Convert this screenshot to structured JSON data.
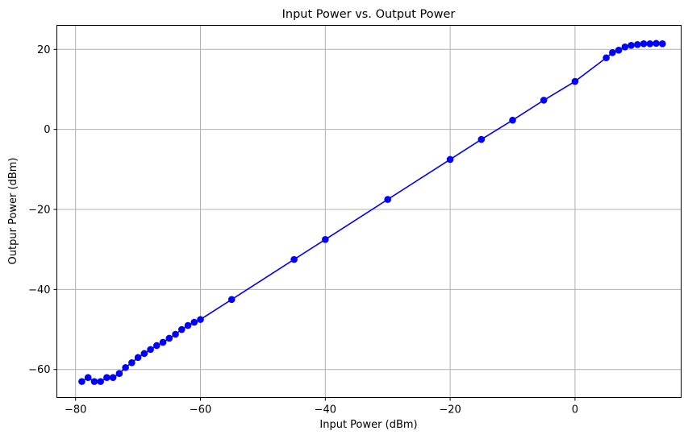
{
  "chart_data": {
    "type": "line",
    "title": "Input Power vs. Output Power",
    "xlabel": "Input Power (dBm)",
    "ylabel": "Outpur Power (dBm)",
    "xlim": [
      -83,
      17
    ],
    "ylim": [
      -67,
      26
    ],
    "xticks": [
      -80,
      -60,
      -40,
      -20,
      0
    ],
    "yticks": [
      -60,
      -40,
      -20,
      0,
      20
    ],
    "xtick_labels": [
      "−80",
      "−60",
      "−40",
      "−20",
      "0"
    ],
    "ytick_labels": [
      "−60",
      "−40",
      "−20",
      "0",
      "20"
    ],
    "grid": true,
    "color": "#0000ff",
    "marker": "circle",
    "series": [
      {
        "x": [
          -79,
          -78,
          -77,
          -76,
          -75,
          -74,
          -73,
          -72,
          -71,
          -70,
          -69,
          -68,
          -67,
          -66,
          -65,
          -64,
          -63,
          -62,
          -61,
          -60,
          -55,
          -45,
          -40,
          -30,
          -20,
          -15,
          -10,
          -5,
          0,
          5,
          6,
          7,
          8,
          9,
          10,
          11,
          12,
          13,
          14
        ],
        "y": [
          -63,
          -62,
          -63,
          -63,
          -62,
          -62,
          -61,
          -59.5,
          -58.3,
          -57,
          -56,
          -55,
          -54,
          -53.2,
          -52.2,
          -51.2,
          -50,
          -49,
          -48.2,
          -47.5,
          -42.5,
          -32.5,
          -27.5,
          -17.5,
          -7.5,
          -2.5,
          2.3,
          7.3,
          12,
          17.9,
          19.2,
          19.8,
          20.6,
          21,
          21.2,
          21.4,
          21.4,
          21.5,
          21.4
        ]
      }
    ]
  }
}
